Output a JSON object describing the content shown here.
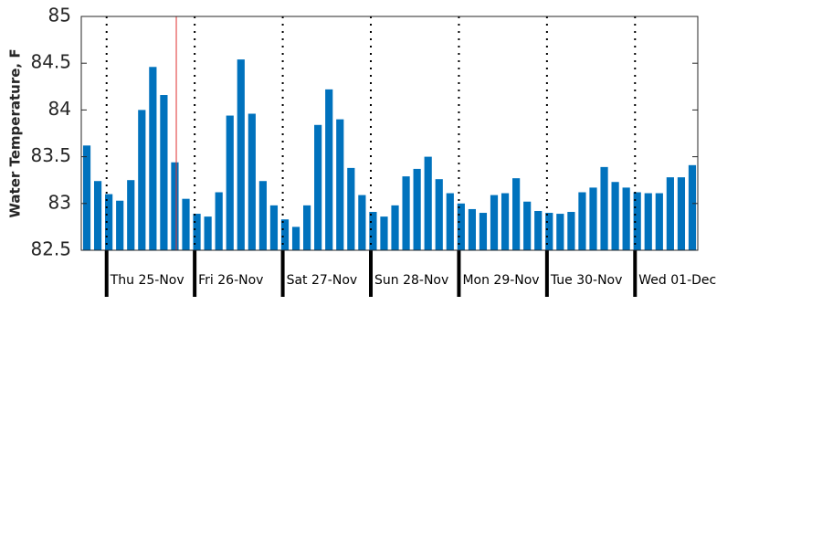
{
  "chart_data": {
    "type": "bar",
    "y_label": "Water Temperature, F",
    "categories": [
      null,
      null,
      null,
      null,
      null,
      null,
      null,
      null,
      null,
      null,
      null,
      null,
      null,
      null,
      null,
      null,
      null,
      null,
      null,
      null,
      null,
      null,
      null,
      null,
      null,
      null,
      null,
      null,
      null,
      null,
      null,
      null,
      null,
      null,
      null,
      null,
      null,
      null,
      null,
      null,
      null,
      null,
      null,
      null,
      null,
      null,
      null,
      null,
      null,
      null,
      null,
      null,
      null,
      null,
      null,
      null
    ],
    "values": [
      83.62,
      83.24,
      83.1,
      83.03,
      83.25,
      84.0,
      84.46,
      84.16,
      83.44,
      83.05,
      82.89,
      82.86,
      83.12,
      83.94,
      84.54,
      83.96,
      83.24,
      82.98,
      82.83,
      82.75,
      82.98,
      83.84,
      84.22,
      83.9,
      83.38,
      83.09,
      82.91,
      82.86,
      82.98,
      83.29,
      83.37,
      83.5,
      83.26,
      83.11,
      83.0,
      82.94,
      82.9,
      83.09,
      83.11,
      83.27,
      83.02,
      82.92,
      82.9,
      82.89,
      82.91,
      83.12,
      83.17,
      83.39,
      83.23,
      83.17,
      83.12,
      83.11,
      83.11,
      83.28,
      83.28,
      83.41
    ],
    "color": "#0072bd",
    "xlim": [
      -0.5,
      55.5
    ],
    "xticks": [
      {
        "value": 1.8,
        "label": "Thu 25-Nov"
      },
      {
        "value": 9.8,
        "label": "Fri 26-Nov"
      },
      {
        "value": 17.8,
        "label": "Sat 27-Nov"
      },
      {
        "value": 25.8,
        "label": "Sun 28-Nov"
      },
      {
        "value": 33.8,
        "label": "Mon 29-Nov"
      },
      {
        "value": 41.8,
        "label": "Tue 30-Nov"
      },
      {
        "value": 49.8,
        "label": "Wed 01-Dec"
      }
    ],
    "ylim": [
      82.5,
      85
    ],
    "yticks": [
      82.5,
      83,
      83.5,
      84,
      84.5,
      85
    ],
    "marker_x": 8.13,
    "marker_color": "#e03030"
  }
}
